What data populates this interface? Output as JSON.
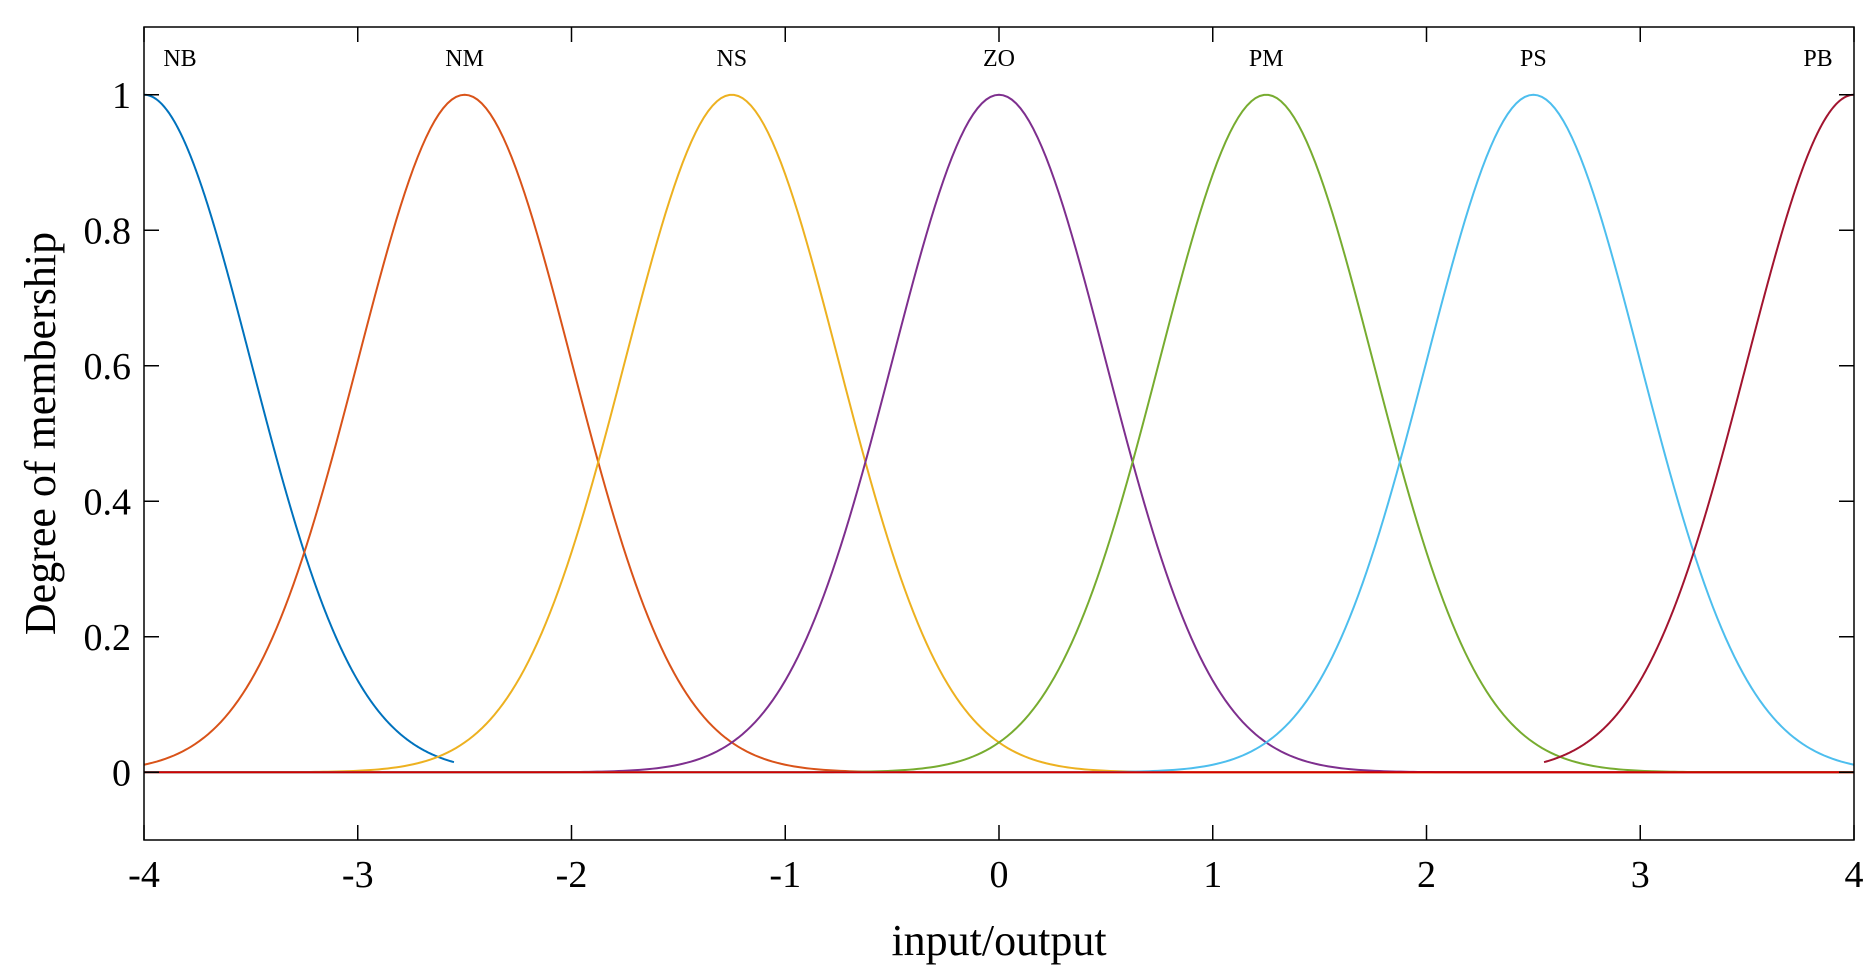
{
  "chart_data": {
    "type": "line",
    "xlabel": "input/output",
    "ylabel": "Degree of membership",
    "xlim": [
      -4,
      4
    ],
    "ylim": [
      -0.1,
      1.1
    ],
    "xticks": [
      -4,
      -3,
      -2,
      -1,
      0,
      1,
      2,
      3,
      4
    ],
    "xtick_labels": [
      "-4",
      "-3",
      "-2",
      "-1",
      "0",
      "1",
      "2",
      "3",
      "4"
    ],
    "yticks": [
      0,
      0.2,
      0.4,
      0.6,
      0.8,
      1
    ],
    "ytick_labels": [
      "0",
      "0.2",
      "0.4",
      "0.6",
      "0.8",
      "1"
    ],
    "grid": false,
    "series": [
      {
        "name": "NB",
        "shape": "gaussian",
        "center": -4,
        "sigma": 0.5,
        "domain": [
          -4,
          -2.55
        ],
        "color": "#0072BD"
      },
      {
        "name": "NM",
        "shape": "gaussian",
        "center": -2.5,
        "sigma": 0.5,
        "domain": [
          -4,
          4
        ],
        "color": "#D95319"
      },
      {
        "name": "NS",
        "shape": "gaussian",
        "center": -1.25,
        "sigma": 0.5,
        "domain": [
          -4,
          4
        ],
        "color": "#EDB120"
      },
      {
        "name": "ZO",
        "shape": "gaussian",
        "center": 0,
        "sigma": 0.5,
        "domain": [
          -4,
          4
        ],
        "color": "#7E2F8E"
      },
      {
        "name": "PM",
        "shape": "gaussian",
        "center": 1.25,
        "sigma": 0.5,
        "domain": [
          -4,
          4
        ],
        "color": "#77AC30"
      },
      {
        "name": "PS",
        "shape": "gaussian",
        "center": 2.5,
        "sigma": 0.5,
        "domain": [
          -4,
          4
        ],
        "color": "#4DBEEE"
      },
      {
        "name": "PB",
        "shape": "gaussian",
        "center": 4,
        "sigma": 0.5,
        "domain": [
          2.55,
          4
        ],
        "color": "#A2142F"
      },
      {
        "name": "",
        "shape": "constant",
        "value": 0,
        "domain": [
          -4,
          4
        ],
        "color": "#D00000"
      }
    ]
  }
}
